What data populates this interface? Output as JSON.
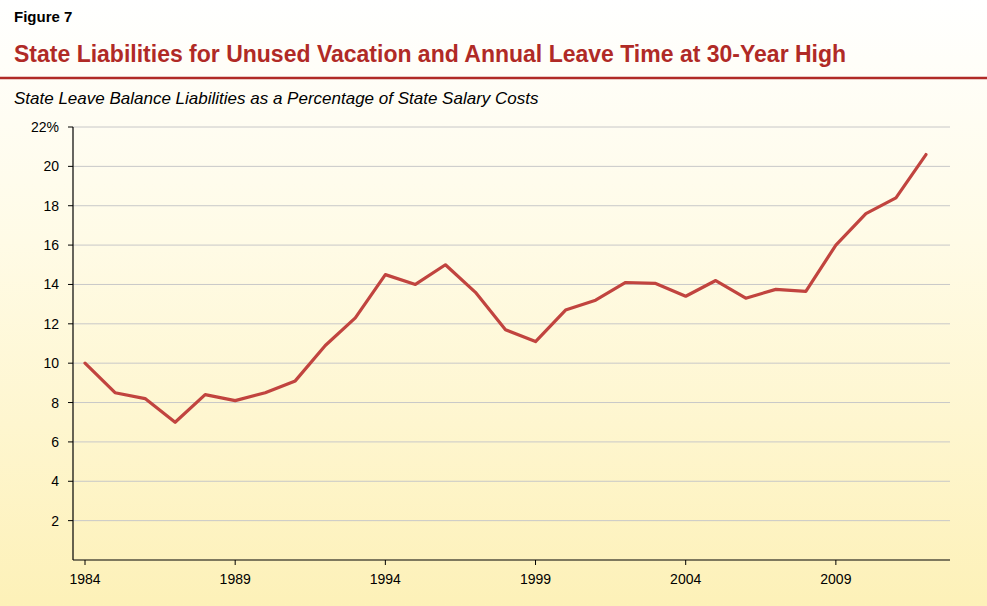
{
  "chart_data": {
    "type": "line",
    "figure_label": "Figure 7",
    "title": "State Liabilities for Unused Vacation and Annual Leave Time at 30-Year High",
    "subtitle": "State Leave Balance Liabilities as a Percentage of State Salary Costs",
    "x": [
      1984,
      1985,
      1986,
      1987,
      1988,
      1989,
      1990,
      1991,
      1992,
      1993,
      1994,
      1995,
      1996,
      1997,
      1998,
      1999,
      2000,
      2001,
      2002,
      2003,
      2004,
      2005,
      2006,
      2007,
      2008,
      2009,
      2010,
      2011,
      2012
    ],
    "values": [
      10.0,
      8.5,
      8.2,
      7.0,
      8.4,
      8.1,
      8.5,
      9.1,
      10.9,
      12.3,
      14.5,
      14.0,
      15.0,
      13.6,
      11.7,
      11.1,
      12.7,
      13.2,
      14.1,
      14.05,
      13.4,
      14.2,
      13.3,
      13.75,
      13.65,
      16.0,
      17.6,
      18.4,
      20.6
    ],
    "color": "#c1443f",
    "xlim": [
      1983.6,
      2012.8
    ],
    "xticks": [
      1984,
      1989,
      1994,
      1999,
      2004,
      2009
    ],
    "ylim": [
      0,
      22
    ],
    "yticks": [
      2,
      4,
      6,
      8,
      10,
      12,
      14,
      16,
      18,
      20,
      {
        "value": 22,
        "label": "22%"
      }
    ],
    "grid": true
  }
}
